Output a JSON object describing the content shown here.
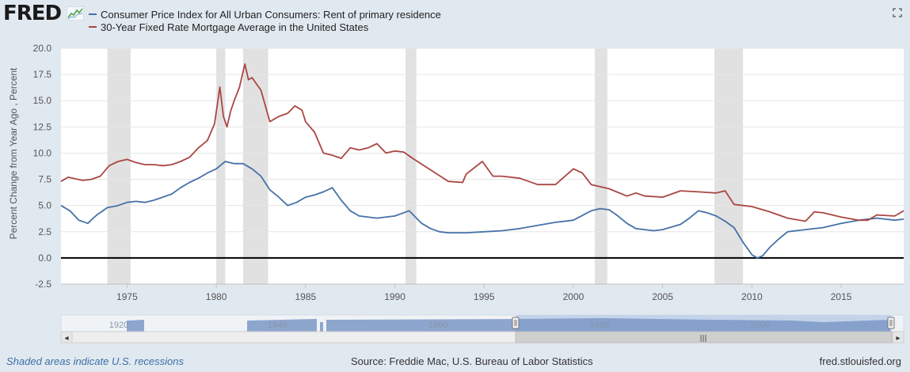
{
  "brand": {
    "logo_text": "FRED",
    "logo_icon": "fred-line-graph-icon"
  },
  "legend": [
    {
      "label": "Consumer Price Index for All Urban Consumers: Rent of primary residence",
      "color": "#4572a7"
    },
    {
      "label": "30-Year Fixed Rate Mortgage Average in the United States",
      "color": "#aa4643"
    }
  ],
  "footer": {
    "recession_note": "Shaded areas indicate U.S. recessions",
    "source": "Source: Freddie Mac, U.S. Bureau of Labor Statistics",
    "site": "fred.stlouisfed.org"
  },
  "navigator": {
    "labels": [
      "1920",
      "1940",
      "1960",
      "1980",
      "2000"
    ],
    "scroll_grip": "|||",
    "left_arrow": "◂",
    "right_arrow": "▸"
  },
  "chart_data": {
    "type": "line",
    "ylabel": "Percent Change from Year Ago , Percent",
    "xlabel": "",
    "ylim": [
      -2.5,
      20.0
    ],
    "xlim": [
      1971.3,
      2018.5
    ],
    "yticks": [
      "-2.5",
      "0.0",
      "2.5",
      "5.0",
      "7.5",
      "10.0",
      "12.5",
      "15.0",
      "17.5",
      "20.0"
    ],
    "xticks": [
      "1975",
      "1980",
      "1985",
      "1990",
      "1995",
      "2000",
      "2005",
      "2010",
      "2015"
    ],
    "recessions": [
      [
        1973.9,
        1975.2
      ],
      [
        1980.0,
        1980.5
      ],
      [
        1981.5,
        1982.9
      ],
      [
        1990.6,
        1991.2
      ],
      [
        2001.2,
        2001.9
      ],
      [
        2007.9,
        2009.5
      ]
    ],
    "series": [
      {
        "name": "Consumer Price Index for All Urban Consumers: Rent of primary residence",
        "color": "#4572a7",
        "x": [
          1971.3,
          1971.8,
          1972.3,
          1972.8,
          1973.3,
          1973.9,
          1974.5,
          1975.0,
          1975.5,
          1976.0,
          1976.5,
          1977.0,
          1977.5,
          1978.0,
          1978.5,
          1979.0,
          1979.5,
          1980.0,
          1980.5,
          1981.0,
          1981.5,
          1982.0,
          1982.5,
          1983.0,
          1983.5,
          1984.0,
          1984.5,
          1985.0,
          1985.5,
          1986.0,
          1986.5,
          1987.0,
          1987.5,
          1988.0,
          1989.0,
          1990.0,
          1990.8,
          1991.5,
          1992.0,
          1992.5,
          1993.0,
          1994.0,
          1995.0,
          1996.0,
          1997.0,
          1998.0,
          1999.0,
          2000.0,
          2001.0,
          2001.5,
          2002.0,
          2002.5,
          2003.0,
          2003.5,
          2004.0,
          2004.5,
          2005.0,
          2006.0,
          2006.5,
          2007.0,
          2007.5,
          2008.0,
          2008.5,
          2009.0,
          2009.5,
          2010.0,
          2010.3,
          2010.6,
          2011.0,
          2011.5,
          2012.0,
          2013.0,
          2014.0,
          2015.0,
          2016.0,
          2017.0,
          2018.0,
          2018.5
        ],
        "y": [
          5.0,
          4.5,
          3.6,
          3.3,
          4.1,
          4.8,
          5.0,
          5.3,
          5.4,
          5.3,
          5.5,
          5.8,
          6.1,
          6.7,
          7.2,
          7.6,
          8.1,
          8.5,
          9.2,
          9.0,
          9.0,
          8.5,
          7.8,
          6.5,
          5.8,
          5.0,
          5.3,
          5.8,
          6.0,
          6.3,
          6.7,
          5.5,
          4.5,
          4.0,
          3.8,
          4.0,
          4.5,
          3.3,
          2.8,
          2.5,
          2.4,
          2.4,
          2.5,
          2.6,
          2.8,
          3.1,
          3.4,
          3.6,
          4.5,
          4.7,
          4.6,
          4.0,
          3.3,
          2.8,
          2.7,
          2.6,
          2.7,
          3.2,
          3.8,
          4.5,
          4.3,
          4.0,
          3.5,
          2.9,
          1.5,
          0.3,
          0.0,
          0.2,
          1.0,
          1.8,
          2.5,
          2.7,
          2.9,
          3.3,
          3.6,
          3.8,
          3.6,
          3.7
        ]
      },
      {
        "name": "30-Year Fixed Rate Mortgage Average in the United States",
        "color": "#aa4643",
        "x": [
          1971.3,
          1971.7,
          1972.5,
          1973.0,
          1973.5,
          1974.0,
          1974.5,
          1975.0,
          1975.5,
          1976.0,
          1976.5,
          1977.0,
          1977.5,
          1978.0,
          1978.5,
          1979.0,
          1979.5,
          1979.9,
          1980.2,
          1980.4,
          1980.6,
          1980.8,
          1981.0,
          1981.3,
          1981.6,
          1981.8,
          1982.0,
          1982.5,
          1983.0,
          1983.5,
          1984.0,
          1984.4,
          1984.8,
          1985.0,
          1985.5,
          1986.0,
          1986.5,
          1987.0,
          1987.5,
          1988.0,
          1988.5,
          1989.0,
          1989.5,
          1990.0,
          1990.5,
          1991.0,
          1992.0,
          1993.0,
          1993.8,
          1994.0,
          1994.9,
          1995.5,
          1996.0,
          1997.0,
          1998.0,
          1999.0,
          2000.0,
          2000.5,
          2001.0,
          2002.0,
          2003.0,
          2003.5,
          2004.0,
          2005.0,
          2006.0,
          2007.0,
          2008.0,
          2008.5,
          2009.0,
          2010.0,
          2011.0,
          2012.0,
          2013.0,
          2013.5,
          2014.0,
          2015.0,
          2016.0,
          2016.5,
          2017.0,
          2018.0,
          2018.5
        ],
        "y": [
          7.3,
          7.7,
          7.4,
          7.5,
          7.8,
          8.8,
          9.2,
          9.4,
          9.1,
          8.9,
          8.9,
          8.8,
          8.9,
          9.2,
          9.6,
          10.5,
          11.2,
          12.8,
          16.3,
          13.5,
          12.5,
          14.0,
          15.0,
          16.3,
          18.5,
          17.0,
          17.2,
          16.0,
          13.0,
          13.5,
          13.8,
          14.5,
          14.1,
          13.0,
          12.0,
          10.0,
          9.8,
          9.5,
          10.5,
          10.3,
          10.5,
          10.9,
          10.0,
          10.2,
          10.1,
          9.5,
          8.4,
          7.3,
          7.2,
          8.0,
          9.2,
          7.8,
          7.8,
          7.6,
          7.0,
          7.0,
          8.5,
          8.1,
          7.0,
          6.6,
          5.9,
          6.2,
          5.9,
          5.8,
          6.4,
          6.3,
          6.2,
          6.4,
          5.1,
          4.9,
          4.4,
          3.8,
          3.5,
          4.4,
          4.3,
          3.9,
          3.6,
          3.6,
          4.1,
          4.0,
          4.5
        ]
      }
    ]
  }
}
